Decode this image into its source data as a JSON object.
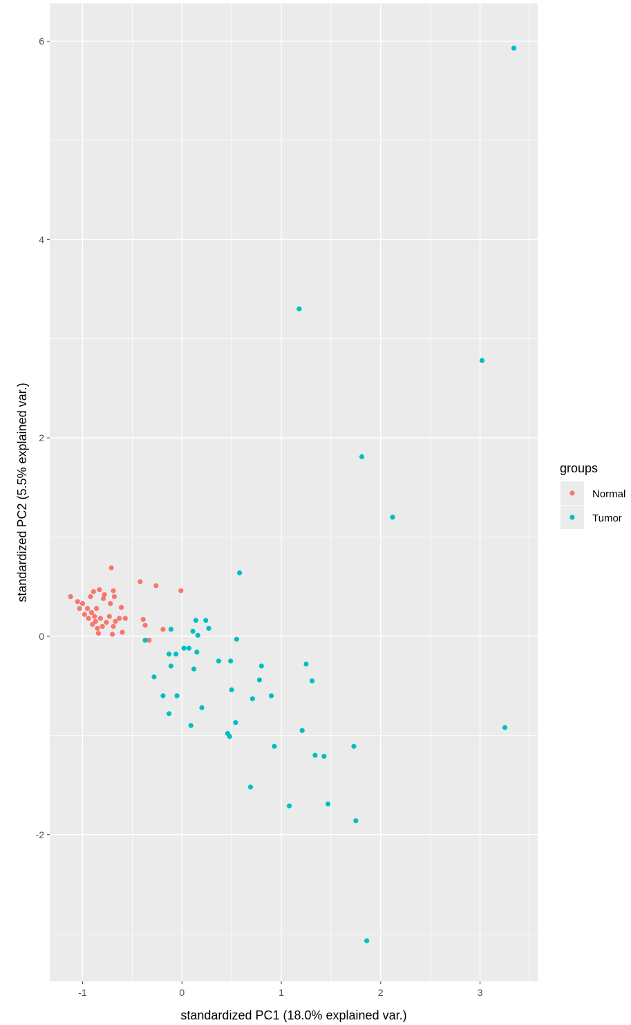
{
  "chart_data": {
    "type": "scatter",
    "title": "",
    "xlabel": "standardized PC1 (18.0% explained var.)",
    "ylabel": "standardized PC2 (5.5% explained var.)",
    "xlim": [
      -1.33,
      3.58
    ],
    "ylim": [
      -3.48,
      6.38
    ],
    "x_ticks": [
      -1,
      0,
      1,
      2,
      3
    ],
    "y_ticks": [
      -2,
      0,
      2,
      4,
      6
    ],
    "x_tick_labels": [
      "-1",
      "0",
      "1",
      "2",
      "3"
    ],
    "y_tick_labels": [
      "-2",
      "0",
      "2",
      "4",
      "6"
    ],
    "grid": true,
    "legend": {
      "title": "groups",
      "position": "right"
    },
    "series": [
      {
        "name": "Normal",
        "color": "#F8766D",
        "points": [
          [
            -1.12,
            0.4
          ],
          [
            -1.05,
            0.35
          ],
          [
            -1.03,
            0.28
          ],
          [
            -1.0,
            0.33
          ],
          [
            -0.98,
            0.22
          ],
          [
            -0.95,
            0.28
          ],
          [
            -0.94,
            0.18
          ],
          [
            -0.92,
            0.4
          ],
          [
            -0.91,
            0.24
          ],
          [
            -0.9,
            0.12
          ],
          [
            -0.89,
            0.45
          ],
          [
            -0.88,
            0.2
          ],
          [
            -0.87,
            0.15
          ],
          [
            -0.86,
            0.28
          ],
          [
            -0.85,
            0.08
          ],
          [
            -0.84,
            0.03
          ],
          [
            -0.83,
            0.47
          ],
          [
            -0.82,
            0.18
          ],
          [
            -0.8,
            0.1
          ],
          [
            -0.79,
            0.38
          ],
          [
            -0.78,
            0.42
          ],
          [
            -0.76,
            0.14
          ],
          [
            -0.73,
            0.2
          ],
          [
            -0.72,
            0.33
          ],
          [
            -0.71,
            0.69
          ],
          [
            -0.7,
            0.02
          ],
          [
            -0.69,
            0.46
          ],
          [
            -0.69,
            0.1
          ],
          [
            -0.68,
            0.4
          ],
          [
            -0.67,
            0.15
          ],
          [
            -0.63,
            0.18
          ],
          [
            -0.61,
            0.29
          ],
          [
            -0.6,
            0.04
          ],
          [
            -0.57,
            0.18
          ],
          [
            -0.42,
            0.55
          ],
          [
            -0.39,
            0.17
          ],
          [
            -0.37,
            0.11
          ],
          [
            -0.33,
            -0.04
          ],
          [
            -0.26,
            0.51
          ],
          [
            -0.19,
            0.07
          ],
          [
            -0.01,
            0.46
          ]
        ]
      },
      {
        "name": "Tumor",
        "color": "#00BFC4",
        "points": [
          [
            3.34,
            5.93
          ],
          [
            1.18,
            3.3
          ],
          [
            3.02,
            2.78
          ],
          [
            1.81,
            1.81
          ],
          [
            2.12,
            1.2
          ],
          [
            0.58,
            0.64
          ],
          [
            -0.37,
            -0.04
          ],
          [
            -0.11,
            0.07
          ],
          [
            0.14,
            0.16
          ],
          [
            0.24,
            0.16
          ],
          [
            0.27,
            0.08
          ],
          [
            0.11,
            0.05
          ],
          [
            0.16,
            0.01
          ],
          [
            0.55,
            -0.03
          ],
          [
            0.02,
            -0.12
          ],
          [
            0.07,
            -0.12
          ],
          [
            0.15,
            -0.16
          ],
          [
            -0.06,
            -0.18
          ],
          [
            -0.13,
            -0.18
          ],
          [
            -0.11,
            -0.3
          ],
          [
            0.37,
            -0.25
          ],
          [
            0.49,
            -0.25
          ],
          [
            0.12,
            -0.33
          ],
          [
            0.8,
            -0.3
          ],
          [
            1.25,
            -0.28
          ],
          [
            -0.28,
            -0.41
          ],
          [
            0.78,
            -0.44
          ],
          [
            1.31,
            -0.45
          ],
          [
            0.5,
            -0.54
          ],
          [
            -0.19,
            -0.6
          ],
          [
            -0.05,
            -0.6
          ],
          [
            0.9,
            -0.6
          ],
          [
            0.71,
            -0.63
          ],
          [
            0.2,
            -0.72
          ],
          [
            -0.13,
            -0.78
          ],
          [
            0.54,
            -0.87
          ],
          [
            0.09,
            -0.9
          ],
          [
            3.25,
            -0.92
          ],
          [
            1.21,
            -0.95
          ],
          [
            0.46,
            -0.98
          ],
          [
            0.48,
            -1.01
          ],
          [
            0.93,
            -1.11
          ],
          [
            1.73,
            -1.11
          ],
          [
            1.34,
            -1.2
          ],
          [
            1.43,
            -1.21
          ],
          [
            0.69,
            -1.52
          ],
          [
            1.08,
            -1.71
          ],
          [
            1.47,
            -1.69
          ],
          [
            1.75,
            -1.86
          ],
          [
            1.86,
            -3.07
          ]
        ]
      }
    ]
  }
}
